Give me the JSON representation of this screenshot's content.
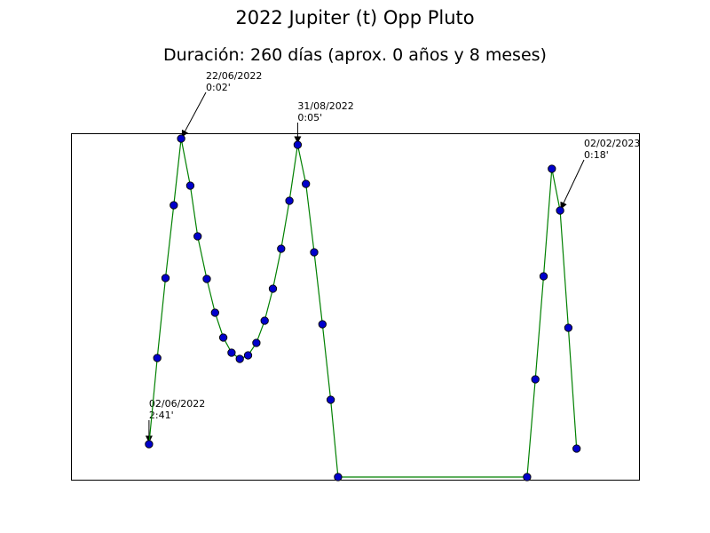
{
  "chart_data": {
    "type": "line",
    "title": "2022 Jupiter (t) Opp Pluto",
    "subtitle": "Duración: 260 días (aprox. 0 años y 8 meses)",
    "xlabel": "",
    "ylabel": "",
    "x_axis_ticks": false,
    "y_axis_ticks": false,
    "grid": false,
    "line_color": "#008000",
    "marker_color": "#0000cc",
    "marker_edge_color": "#000000",
    "xlim": [
      0,
      61.9
    ],
    "ylim": [
      0,
      39
    ],
    "series": [
      {
        "points": [
          {
            "x": 8.5,
            "y": 4.0
          },
          {
            "x": 9.4,
            "y": 13.7
          },
          {
            "x": 10.3,
            "y": 22.7
          },
          {
            "x": 11.2,
            "y": 30.9
          },
          {
            "x": 12.0,
            "y": 38.4
          },
          {
            "x": 13.0,
            "y": 33.1
          },
          {
            "x": 13.8,
            "y": 27.4
          },
          {
            "x": 14.8,
            "y": 22.6
          },
          {
            "x": 15.7,
            "y": 18.8
          },
          {
            "x": 16.6,
            "y": 16.0
          },
          {
            "x": 17.5,
            "y": 14.3
          },
          {
            "x": 18.4,
            "y": 13.6
          },
          {
            "x": 19.3,
            "y": 14.0
          },
          {
            "x": 20.2,
            "y": 15.4
          },
          {
            "x": 21.1,
            "y": 17.9
          },
          {
            "x": 22.0,
            "y": 21.5
          },
          {
            "x": 22.9,
            "y": 26.0
          },
          {
            "x": 23.8,
            "y": 31.4
          },
          {
            "x": 24.7,
            "y": 37.7
          },
          {
            "x": 25.6,
            "y": 33.3
          },
          {
            "x": 26.5,
            "y": 25.6
          },
          {
            "x": 27.4,
            "y": 17.5
          },
          {
            "x": 28.3,
            "y": 9.0
          },
          {
            "x": 29.1,
            "y": 0.3
          },
          {
            "x": 49.7,
            "y": 0.3
          },
          {
            "x": 50.6,
            "y": 11.3
          },
          {
            "x": 51.5,
            "y": 22.9
          },
          {
            "x": 52.4,
            "y": 35.0
          },
          {
            "x": 53.3,
            "y": 30.3
          },
          {
            "x": 54.2,
            "y": 17.1
          },
          {
            "x": 55.1,
            "y": 3.5
          }
        ]
      }
    ],
    "annotations": [
      {
        "date": "02/06/2022",
        "value": "2:41'",
        "point_index": 0,
        "text_dx": 0.0,
        "text_dy": 2.8
      },
      {
        "date": "22/06/2022",
        "value": "0:02'",
        "point_index": 4,
        "text_dx": 2.7,
        "text_dy": 5.3
      },
      {
        "date": "31/08/2022",
        "value": "0:05'",
        "point_index": 18,
        "text_dx": 0.0,
        "text_dy": 2.6
      },
      {
        "date": "02/02/2023",
        "value": "0:18'",
        "point_index": 28,
        "text_dx": 2.6,
        "text_dy": 5.8
      }
    ]
  }
}
